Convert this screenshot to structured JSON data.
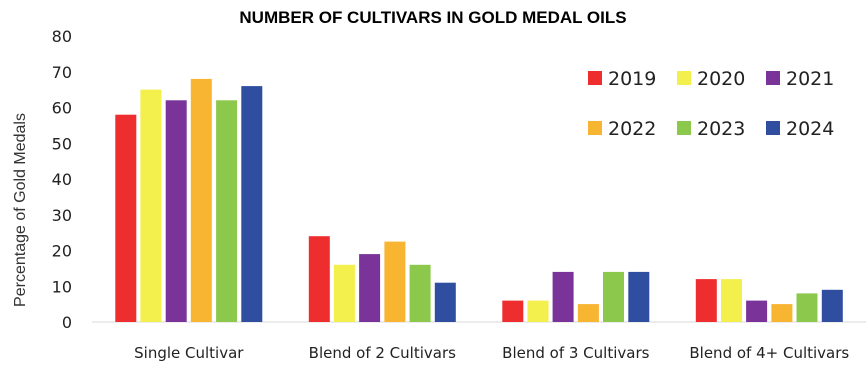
{
  "chart_data": {
    "type": "bar",
    "title": "NUMBER OF CULTIVARS IN GOLD MEDAL OILS",
    "xlabel": "",
    "ylabel": "Percentage of Gold Medals",
    "ylim": [
      0,
      80
    ],
    "yticks": [
      0,
      10,
      20,
      30,
      40,
      50,
      60,
      70,
      80
    ],
    "grid": false,
    "legend_position": "top-right",
    "categories": [
      "Single Cultivar",
      "Blend of 2 Cultivars",
      "Blend of 3 Cultivars",
      "Blend of 4+ Cultivars"
    ],
    "series": [
      {
        "name": "2019",
        "color": "#ee2e2e",
        "values": [
          58,
          24,
          6,
          12
        ]
      },
      {
        "name": "2020",
        "color": "#f3ef4c",
        "values": [
          65,
          16,
          6,
          12
        ]
      },
      {
        "name": "2021",
        "color": "#7a3499",
        "values": [
          62,
          19,
          14,
          6
        ]
      },
      {
        "name": "2022",
        "color": "#f7b532",
        "values": [
          68,
          22.5,
          5,
          5
        ]
      },
      {
        "name": "2023",
        "color": "#8cc84b",
        "values": [
          62,
          16,
          14,
          8
        ]
      },
      {
        "name": "2024",
        "color": "#2f4ea0",
        "values": [
          66,
          11,
          14,
          9
        ]
      }
    ]
  }
}
